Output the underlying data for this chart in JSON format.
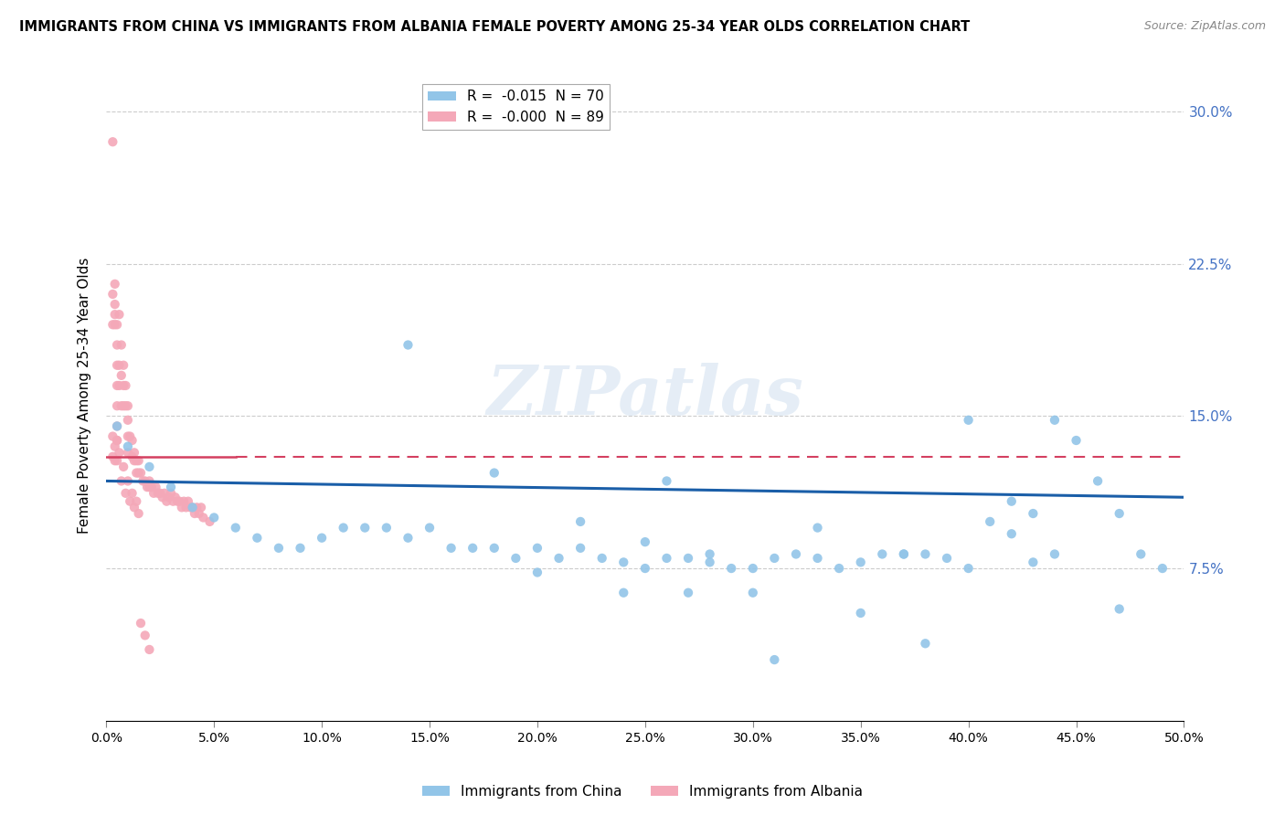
{
  "title": "IMMIGRANTS FROM CHINA VS IMMIGRANTS FROM ALBANIA FEMALE POVERTY AMONG 25-34 YEAR OLDS CORRELATION CHART",
  "source": "Source: ZipAtlas.com",
  "ylabel": "Female Poverty Among 25-34 Year Olds",
  "yticks": [
    "7.5%",
    "15.0%",
    "22.5%",
    "30.0%"
  ],
  "ytick_vals": [
    0.075,
    0.15,
    0.225,
    0.3
  ],
  "xlim": [
    0.0,
    0.5
  ],
  "ylim": [
    0.0,
    0.32
  ],
  "legend_r_china": "-0.015",
  "legend_n_china": "70",
  "legend_r_albania": "-0.000",
  "legend_n_albania": "89",
  "color_china": "#92C5E8",
  "color_albania": "#F4A8B8",
  "regression_color_china": "#1A5EA8",
  "regression_color_albania": "#D44060",
  "watermark": "ZIPatlas",
  "china_x": [
    0.005,
    0.01,
    0.02,
    0.03,
    0.04,
    0.05,
    0.06,
    0.07,
    0.08,
    0.09,
    0.1,
    0.11,
    0.12,
    0.13,
    0.14,
    0.15,
    0.16,
    0.17,
    0.18,
    0.19,
    0.2,
    0.21,
    0.22,
    0.23,
    0.24,
    0.25,
    0.26,
    0.27,
    0.28,
    0.29,
    0.3,
    0.31,
    0.32,
    0.33,
    0.34,
    0.35,
    0.36,
    0.37,
    0.38,
    0.39,
    0.4,
    0.41,
    0.42,
    0.43,
    0.44,
    0.45,
    0.46,
    0.47,
    0.48,
    0.49,
    0.14,
    0.18,
    0.22,
    0.25,
    0.28,
    0.2,
    0.24,
    0.27,
    0.3,
    0.35,
    0.38,
    0.42,
    0.44,
    0.33,
    0.37,
    0.4,
    0.43,
    0.47,
    0.26,
    0.31
  ],
  "china_y": [
    0.145,
    0.135,
    0.125,
    0.115,
    0.105,
    0.1,
    0.095,
    0.09,
    0.085,
    0.085,
    0.09,
    0.095,
    0.095,
    0.095,
    0.09,
    0.095,
    0.085,
    0.085,
    0.085,
    0.08,
    0.085,
    0.08,
    0.085,
    0.08,
    0.078,
    0.075,
    0.08,
    0.08,
    0.078,
    0.075,
    0.075,
    0.08,
    0.082,
    0.08,
    0.075,
    0.078,
    0.082,
    0.082,
    0.082,
    0.08,
    0.075,
    0.098,
    0.108,
    0.078,
    0.082,
    0.138,
    0.118,
    0.102,
    0.082,
    0.075,
    0.185,
    0.122,
    0.098,
    0.088,
    0.082,
    0.073,
    0.063,
    0.063,
    0.063,
    0.053,
    0.038,
    0.092,
    0.148,
    0.095,
    0.082,
    0.148,
    0.102,
    0.055,
    0.118,
    0.03
  ],
  "albania_x": [
    0.003,
    0.003,
    0.003,
    0.004,
    0.004,
    0.004,
    0.004,
    0.005,
    0.005,
    0.005,
    0.005,
    0.005,
    0.005,
    0.005,
    0.006,
    0.006,
    0.006,
    0.007,
    0.007,
    0.007,
    0.008,
    0.008,
    0.008,
    0.009,
    0.009,
    0.01,
    0.01,
    0.01,
    0.01,
    0.011,
    0.012,
    0.012,
    0.013,
    0.013,
    0.014,
    0.014,
    0.015,
    0.015,
    0.016,
    0.017,
    0.018,
    0.019,
    0.02,
    0.02,
    0.021,
    0.022,
    0.023,
    0.024,
    0.025,
    0.026,
    0.027,
    0.028,
    0.029,
    0.03,
    0.031,
    0.032,
    0.033,
    0.034,
    0.035,
    0.036,
    0.037,
    0.038,
    0.039,
    0.04,
    0.041,
    0.042,
    0.043,
    0.044,
    0.045,
    0.048,
    0.003,
    0.003,
    0.004,
    0.004,
    0.005,
    0.005,
    0.006,
    0.007,
    0.008,
    0.009,
    0.01,
    0.011,
    0.012,
    0.013,
    0.014,
    0.015,
    0.016,
    0.018,
    0.02
  ],
  "albania_y": [
    0.285,
    0.21,
    0.195,
    0.215,
    0.205,
    0.2,
    0.195,
    0.195,
    0.185,
    0.175,
    0.165,
    0.155,
    0.145,
    0.138,
    0.2,
    0.175,
    0.165,
    0.185,
    0.17,
    0.155,
    0.175,
    0.165,
    0.155,
    0.165,
    0.155,
    0.155,
    0.148,
    0.14,
    0.132,
    0.14,
    0.138,
    0.13,
    0.132,
    0.128,
    0.128,
    0.122,
    0.128,
    0.122,
    0.122,
    0.118,
    0.118,
    0.115,
    0.118,
    0.115,
    0.115,
    0.112,
    0.115,
    0.112,
    0.112,
    0.11,
    0.112,
    0.108,
    0.11,
    0.112,
    0.108,
    0.11,
    0.108,
    0.108,
    0.105,
    0.108,
    0.105,
    0.108,
    0.105,
    0.105,
    0.102,
    0.105,
    0.102,
    0.105,
    0.1,
    0.098,
    0.14,
    0.13,
    0.135,
    0.128,
    0.138,
    0.128,
    0.132,
    0.118,
    0.125,
    0.112,
    0.118,
    0.108,
    0.112,
    0.105,
    0.108,
    0.102,
    0.048,
    0.042,
    0.035
  ]
}
